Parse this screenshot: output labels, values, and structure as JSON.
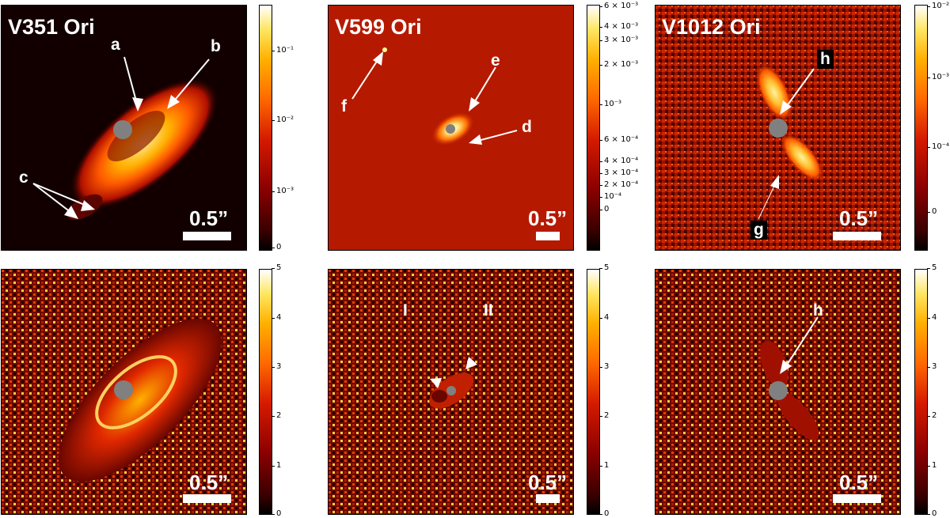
{
  "panels": {
    "top_left": {
      "title": "V351 Ori",
      "scale": "0.5”",
      "labels": [
        "a",
        "b",
        "c"
      ]
    },
    "top_mid": {
      "title": "V599 Ori",
      "scale": "0.5”",
      "labels": [
        "e",
        "f",
        "d"
      ]
    },
    "top_right": {
      "title": "V1012 Ori",
      "scale": "0.5”",
      "labels": [
        "h",
        "g"
      ]
    },
    "bot_left": {
      "scale": "0.5”"
    },
    "bot_mid": {
      "scale": "0.5”",
      "labels": [
        "I",
        "II"
      ]
    },
    "bot_right": {
      "scale": "0.5”",
      "labels": [
        "h"
      ]
    }
  },
  "colorbars": {
    "top_left": [
      "10⁻¹",
      "10⁻²",
      "10⁻³",
      "0"
    ],
    "top_mid": [
      "6 × 10⁻³",
      "4 × 10⁻³",
      "3 × 10⁻³",
      "2 × 10⁻³",
      "10⁻³",
      "6 × 10⁻⁴",
      "4 × 10⁻⁴",
      "3 × 10⁻⁴",
      "2 × 10⁻⁴",
      "10⁻⁴",
      "0"
    ],
    "top_right": [
      "10⁻²",
      "10⁻³",
      "10⁻⁴",
      "0"
    ],
    "bottom": [
      "5",
      "4",
      "3",
      "2",
      "1",
      "0"
    ]
  },
  "colors": {
    "colormap": "hot",
    "star_mask": "#808080"
  }
}
